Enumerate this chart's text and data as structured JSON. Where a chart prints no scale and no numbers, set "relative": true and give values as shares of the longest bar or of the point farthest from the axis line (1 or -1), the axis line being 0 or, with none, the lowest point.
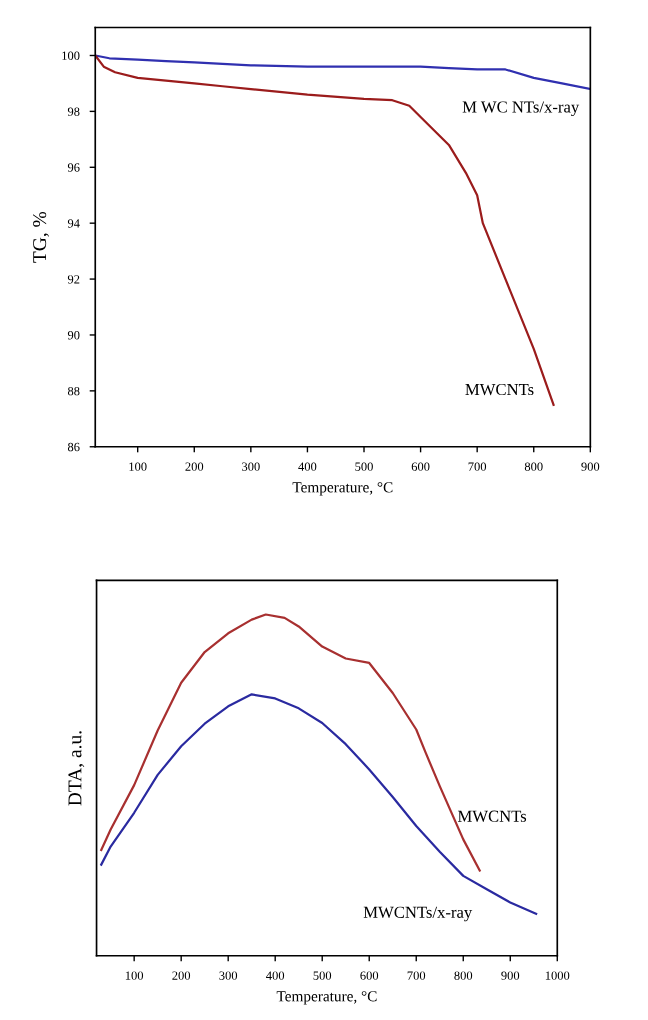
{
  "chart_data": [
    {
      "type": "line",
      "xlabel": "Temperature, °C",
      "ylabel": "TG, %",
      "xlim": [
        25,
        900
      ],
      "ylim": [
        86,
        101
      ],
      "xticks": [
        100,
        200,
        300,
        400,
        500,
        600,
        700,
        800,
        900
      ],
      "yticks": [
        86,
        88,
        90,
        92,
        94,
        96,
        98,
        100
      ],
      "series": [
        {
          "name": "M WC NTs/x-ray",
          "color": "#3030b0",
          "x": [
            25,
            50,
            100,
            150,
            200,
            250,
            300,
            400,
            500,
            600,
            650,
            700,
            750,
            800,
            850,
            900
          ],
          "values": [
            100,
            99.9,
            99.85,
            99.8,
            99.75,
            99.7,
            99.65,
            99.6,
            99.6,
            99.6,
            99.55,
            99.5,
            99.5,
            99.2,
            99.0,
            98.8
          ]
        },
        {
          "name": "MWCNTs",
          "color": "#9b1c1c",
          "x": [
            25,
            40,
            60,
            100,
            150,
            200,
            250,
            300,
            400,
            500,
            550,
            580,
            600,
            650,
            680,
            700,
            710,
            750,
            800,
            835
          ],
          "values": [
            100,
            99.6,
            99.4,
            99.2,
            99.1,
            99.0,
            98.9,
            98.8,
            98.6,
            98.45,
            98.4,
            98.2,
            97.8,
            96.8,
            95.8,
            95.0,
            94.0,
            92.0,
            89.5,
            87.5
          ]
        }
      ]
    },
    {
      "type": "line",
      "relative": true,
      "xlabel": "Temperature, °C",
      "ylabel": "DTA, a.u.",
      "xlim": [
        20,
        1000
      ],
      "xticks": [
        100,
        200,
        300,
        400,
        500,
        600,
        700,
        800,
        900,
        1000
      ],
      "series": [
        {
          "name": "MWCNTs",
          "color": "#a83030",
          "x": [
            30,
            50,
            100,
            150,
            200,
            250,
            300,
            350,
            380,
            420,
            450,
            500,
            550,
            600,
            650,
            700,
            720,
            750,
            800,
            835
          ],
          "values": [
            0.31,
            0.37,
            0.5,
            0.66,
            0.8,
            0.89,
            0.945,
            0.985,
            1.0,
            0.99,
            0.965,
            0.906,
            0.871,
            0.858,
            0.77,
            0.663,
            0.595,
            0.497,
            0.341,
            0.25
          ]
        },
        {
          "name": "MWCNTs/x-ray",
          "color": "#2a2aa0",
          "x": [
            30,
            50,
            100,
            150,
            200,
            250,
            300,
            350,
            400,
            450,
            500,
            550,
            600,
            650,
            700,
            750,
            800,
            850,
            900,
            955
          ],
          "values": [
            0.267,
            0.32,
            0.419,
            0.53,
            0.614,
            0.68,
            0.731,
            0.766,
            0.754,
            0.725,
            0.682,
            0.62,
            0.546,
            0.465,
            0.38,
            0.305,
            0.234,
            0.195,
            0.156,
            0.123
          ]
        }
      ]
    }
  ]
}
